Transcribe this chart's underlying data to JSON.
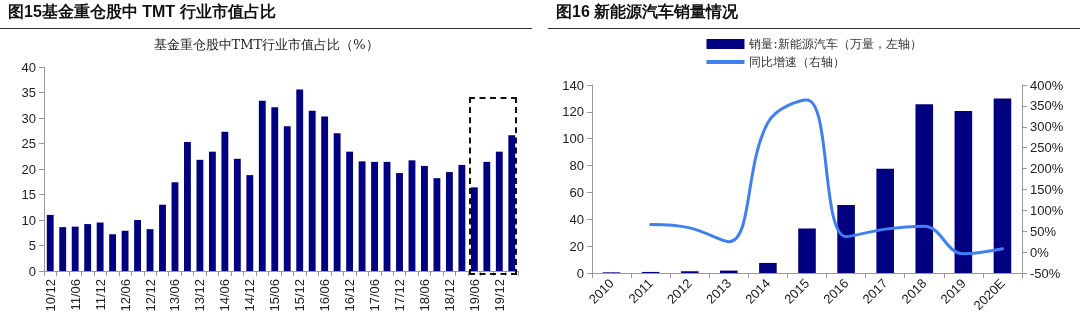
{
  "chart_data": [
    {
      "type": "bar",
      "title": "图15基金重仓股中 TMT 行业市值占比",
      "subtitle": "基金重仓股中TMT行业市值占比（%）",
      "categories": [
        "10/12",
        null,
        "11/06",
        null,
        "11/12",
        null,
        "12/06",
        null,
        "12/12",
        null,
        "13/06",
        null,
        "13/12",
        null,
        "14/06",
        null,
        "14/12",
        null,
        "15/06",
        null,
        "15/12",
        null,
        "16/06",
        null,
        "16/12",
        null,
        "17/06",
        null,
        "17/12",
        null,
        "18/06",
        null,
        "18/12",
        null,
        "19/06",
        null,
        "19/12",
        null
      ],
      "series": [
        {
          "color": "#000080",
          "values": [
            11,
            8.6,
            8.7,
            9.2,
            9.5,
            7.2,
            7.9,
            10,
            8.2,
            13,
            17.4,
            25.3,
            21.8,
            23.4,
            27.3,
            22,
            18.8,
            33.4,
            32.1,
            28.4,
            35.6,
            31.4,
            30.3,
            27,
            23.4,
            21.5,
            21.4,
            21.4,
            19.2,
            21.7,
            20.6,
            18.2,
            19.4,
            20.8,
            16.4,
            21.4,
            23.4,
            26.6
          ]
        }
      ],
      "ylim": [
        0,
        40
      ],
      "yticks": [
        0,
        5,
        10,
        15,
        20,
        25,
        30,
        35,
        40
      ],
      "legend": false
    },
    {
      "type": "bar",
      "title": "图16  新能源汽车销量情况",
      "categories": [
        "2010",
        "2011",
        "2012",
        "2013",
        "2014",
        "2015",
        "2016",
        "2017",
        "2018",
        "2019",
        "2020E"
      ],
      "series": [
        {
          "name": "销量:新能源汽车（万量，左轴）",
          "type": "bar",
          "color": "#000080",
          "values": [
            0.5,
            0.8,
            1.3,
            1.8,
            7.5,
            33.1,
            50.7,
            77.7,
            125.6,
            120.6,
            130
          ]
        },
        {
          "name": "同比增速（右轴）",
          "type": "line",
          "axis": "y2",
          "color": "#3f7ff0",
          "values": [
            null,
            66,
            58,
            25,
            310,
            364,
            37,
            55,
            62,
            -4,
            8
          ]
        }
      ],
      "ylim": [
        0,
        140
      ],
      "yticks": [
        0,
        20,
        40,
        60,
        80,
        100,
        120,
        140
      ],
      "y2lim": [
        -50,
        400
      ],
      "y2ticks": [
        {
          "value": -50,
          "label": "-50%"
        },
        {
          "value": 0,
          "label": "0%"
        },
        {
          "value": 50,
          "label": "50%"
        },
        {
          "value": 100,
          "label": "100%"
        },
        {
          "value": 150,
          "label": "150%"
        },
        {
          "value": 200,
          "label": "200%"
        },
        {
          "value": 250,
          "label": "250%"
        },
        {
          "value": 300,
          "label": "300%"
        },
        {
          "value": 350,
          "label": "350%"
        },
        {
          "value": 400,
          "label": "400%"
        }
      ],
      "legend": "top"
    }
  ]
}
